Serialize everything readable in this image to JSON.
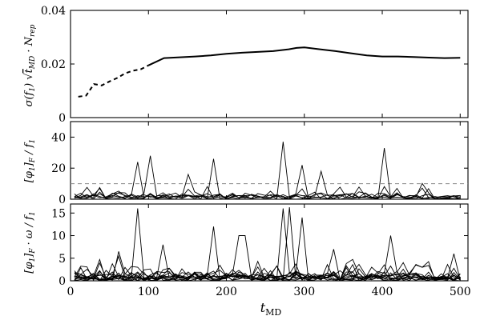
{
  "chart_data": [
    {
      "type": "line",
      "ylabel": "σ(f₁)√(t_MD·N_rep)",
      "xlim": [
        0,
        510
      ],
      "ylim": [
        0,
        0.04
      ],
      "yticks": [
        0,
        0.02,
        0.04
      ],
      "ytick_labels": [
        "0",
        "0.02",
        "0.04"
      ],
      "grid": false,
      "series": [
        {
          "style": "dashed",
          "x": [
            10,
            20,
            30,
            40,
            50,
            60,
            70,
            80,
            90,
            100
          ],
          "y": [
            0.0078,
            0.0082,
            0.0125,
            0.012,
            0.0135,
            0.0148,
            0.0165,
            0.0175,
            0.018,
            0.0195
          ]
        },
        {
          "style": "solid",
          "x": [
            100,
            120,
            140,
            160,
            180,
            200,
            220,
            240,
            260,
            280,
            290,
            300,
            320,
            340,
            360,
            380,
            400,
            420,
            440,
            460,
            480,
            500
          ],
          "y": [
            0.0195,
            0.0222,
            0.0225,
            0.0228,
            0.0232,
            0.0238,
            0.0242,
            0.0245,
            0.0248,
            0.0255,
            0.026,
            0.0262,
            0.0255,
            0.0248,
            0.024,
            0.0232,
            0.0228,
            0.0228,
            0.0226,
            0.0224,
            0.0222,
            0.0223
          ]
        }
      ]
    },
    {
      "type": "line",
      "ylabel": "[φ₁]_F / f₁",
      "xlim": [
        0,
        510
      ],
      "ylim": [
        0,
        50
      ],
      "yticks": [
        0,
        20,
        40
      ],
      "ytick_labels": [
        "0",
        "20",
        "40"
      ],
      "reference_line": {
        "y": 10,
        "style": "dashed",
        "color": "#888888"
      },
      "series_count": 6,
      "generator": {
        "points_per_series": 62,
        "x_start": 5,
        "x_end": 500,
        "base_level": 2.5,
        "spikes": [
          [
            90,
            24
          ],
          [
            100,
            28
          ],
          [
            180,
            26
          ],
          [
            270,
            37
          ],
          [
            295,
            22
          ],
          [
            405,
            33
          ],
          [
            150,
            16
          ],
          [
            320,
            18
          ]
        ]
      }
    },
    {
      "type": "line",
      "ylabel": "[φ₁]_F·ω / f₁",
      "xlabel": "t_MD",
      "xlim": [
        0,
        510
      ],
      "ylim": [
        0,
        17
      ],
      "yticks": [
        0,
        5,
        10,
        15
      ],
      "ytick_labels": [
        "0",
        "5",
        "10",
        "15"
      ],
      "xticks": [
        0,
        100,
        200,
        300,
        400,
        500
      ],
      "xtick_labels": [
        "0",
        "100",
        "200",
        "300",
        "400",
        "500"
      ],
      "series_count": 12,
      "generator": {
        "points_per_series": 62,
        "x_start": 5,
        "x_end": 500,
        "base_level": 1.2,
        "spikes": [
          [
            90,
            16
          ],
          [
            270,
            16
          ],
          [
            280,
            16.3
          ],
          [
            300,
            14
          ],
          [
            180,
            12
          ],
          [
            220,
            10
          ],
          [
            410,
            10
          ],
          [
            120,
            8
          ],
          [
            340,
            7
          ],
          [
            60,
            6.5
          ],
          [
            495,
            6
          ]
        ]
      }
    }
  ],
  "labels": {
    "panel1_ylabel_main": "σ(f",
    "panel1_ylabel_sub": "1",
    "panel2_ylabel": "[φ",
    "panel3_ylabel": "[φ",
    "xlabel_main": "t",
    "xlabel_sub": "MD"
  }
}
